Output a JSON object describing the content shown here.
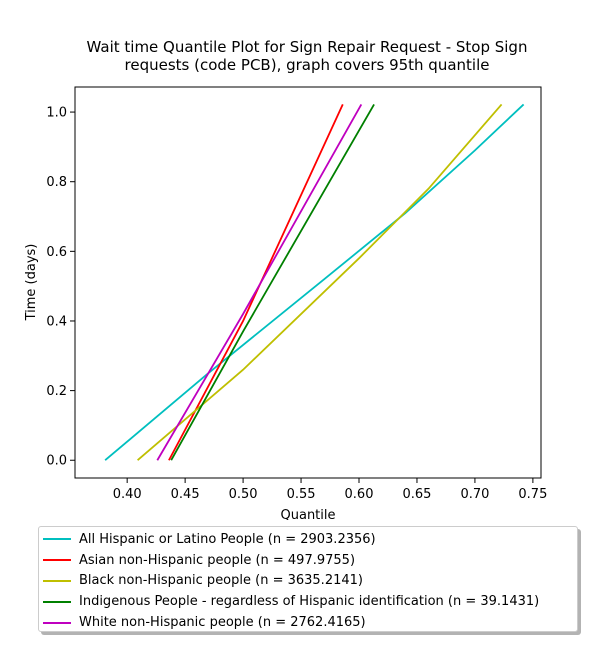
{
  "chart_data": {
    "type": "line",
    "title_line1": "Wait time Quantile Plot for Sign Repair Request - Stop Sign",
    "title_line2": "requests (code PCB), graph covers 95th quantile",
    "xlabel": "Quantile",
    "ylabel": "Time (days)",
    "xlim": [
      0.355,
      0.757
    ],
    "ylim": [
      -0.051,
      1.072
    ],
    "xticks": [
      0.4,
      0.45,
      0.5,
      0.55,
      0.6,
      0.65,
      0.7,
      0.75
    ],
    "xtick_labels": [
      "0.40",
      "0.45",
      "0.50",
      "0.55",
      "0.60",
      "0.65",
      "0.70",
      "0.75"
    ],
    "yticks": [
      0.0,
      0.2,
      0.4,
      0.6,
      0.8,
      1.0
    ],
    "ytick_labels": [
      "0.0",
      "0.2",
      "0.4",
      "0.6",
      "0.8",
      "1.0"
    ],
    "grid": false,
    "legend_position": "below",
    "series": [
      {
        "name": "All Hispanic or Latino People (n = 2903.2356)",
        "color": "#00bfbf",
        "points": [
          [
            0.381,
            0.0
          ],
          [
            0.47,
            0.25
          ],
          [
            0.57,
            0.52
          ],
          [
            0.64,
            0.71
          ],
          [
            0.7,
            0.89
          ],
          [
            0.742,
            1.022
          ]
        ]
      },
      {
        "name": "Asian non-Hispanic people (n = 497.9755)",
        "color": "#ff0000",
        "points": [
          [
            0.436,
            0.0
          ],
          [
            0.5,
            0.4
          ],
          [
            0.586,
            1.022
          ]
        ]
      },
      {
        "name": "Black non-Hispanic people (n = 3635.2141)",
        "color": "#bfbf00",
        "points": [
          [
            0.409,
            0.0
          ],
          [
            0.5,
            0.26
          ],
          [
            0.6,
            0.58
          ],
          [
            0.66,
            0.78
          ],
          [
            0.723,
            1.022
          ]
        ]
      },
      {
        "name": "Indigenous People - regardless of Hispanic identification (n = 39.1431)",
        "color": "#008000",
        "points": [
          [
            0.438,
            0.0
          ],
          [
            0.5,
            0.37
          ],
          [
            0.613,
            1.022
          ]
        ]
      },
      {
        "name": "White non-Hispanic people (n = 2762.4165)",
        "color": "#bf00bf",
        "points": [
          [
            0.426,
            0.0
          ],
          [
            0.5,
            0.42
          ],
          [
            0.602,
            1.022
          ]
        ]
      }
    ]
  }
}
